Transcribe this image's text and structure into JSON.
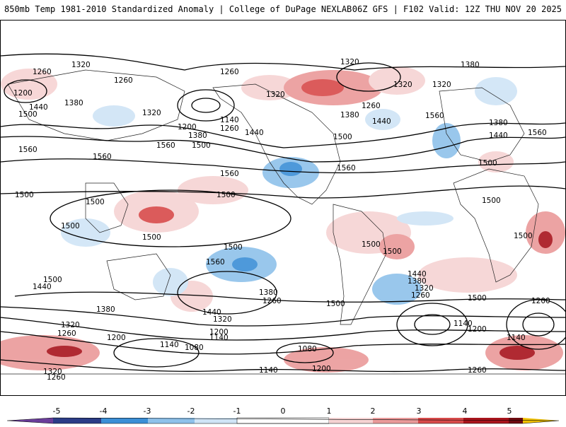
{
  "header": {
    "title_left": "850mb Temp 1981-2010 Standardized Anomaly | College of DuPage NEXLAB",
    "title_right": "06Z GFS | F102 Valid: 12Z THU NOV 20 2025"
  },
  "colorbar": {
    "labels": [
      "-5",
      "-4",
      "-3",
      "-2",
      "-1",
      "0",
      "1",
      "2",
      "3",
      "4",
      "5"
    ],
    "colors": {
      "neg5": "#6a3d9a",
      "neg4": "#2b3c87",
      "neg3": "#3b8fd6",
      "neg2": "#8ec1ea",
      "neg1": "#cfe4f6",
      "zero": "#ffffff",
      "pos1": "#f6d3d3",
      "pos2": "#ea9a9a",
      "pos3": "#d84a4a",
      "pos4": "#a8141c",
      "pos5": "#6e0a10",
      "extreme": "#f2c200"
    }
  },
  "contour_labels": [
    "1320",
    "1260",
    "1200",
    "1380",
    "1500",
    "1440",
    "1560",
    "1140",
    "1080"
  ]
}
